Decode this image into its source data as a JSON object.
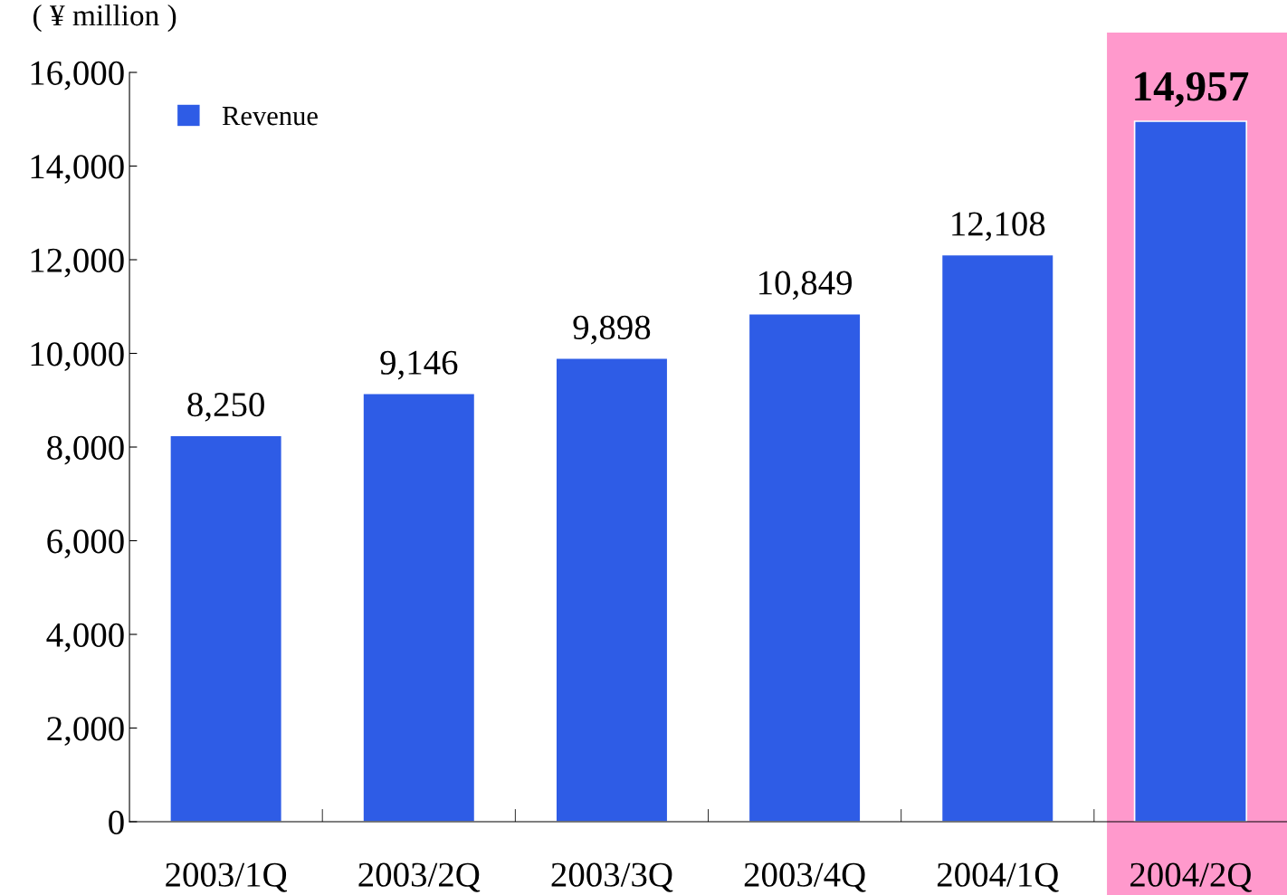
{
  "chart_data": {
    "type": "bar",
    "ylabel": "( ¥ million )",
    "categories": [
      "2003/1Q",
      "2003/2Q",
      "2003/3Q",
      "2003/4Q",
      "2004/1Q",
      "2004/2Q"
    ],
    "series": [
      {
        "name": "Revenue",
        "color": "#2e5ce6",
        "values": [
          8250,
          9146,
          9898,
          10849,
          12108,
          14957
        ]
      }
    ],
    "value_labels": [
      "8,250",
      "9,146",
      "9,898",
      "10,849",
      "12,108",
      "14,957"
    ],
    "ylim": [
      0,
      16000
    ],
    "yticks": [
      {
        "value": 0,
        "label": "0"
      },
      {
        "value": 2000,
        "label": "2,000"
      },
      {
        "value": 4000,
        "label": "4,000"
      },
      {
        "value": 6000,
        "label": "6,000"
      },
      {
        "value": 8000,
        "label": "8,000"
      },
      {
        "value": 10000,
        "label": "10,000"
      },
      {
        "value": 12000,
        "label": "12,000"
      },
      {
        "value": 14000,
        "label": "14,000"
      },
      {
        "value": 16000,
        "label": "16,000"
      }
    ],
    "bands": [
      {
        "axis": "x",
        "from": "2004/2Q",
        "to": "2004/2Q",
        "color": "#ff99cc"
      }
    ],
    "legend": "top left",
    "grid": false
  }
}
